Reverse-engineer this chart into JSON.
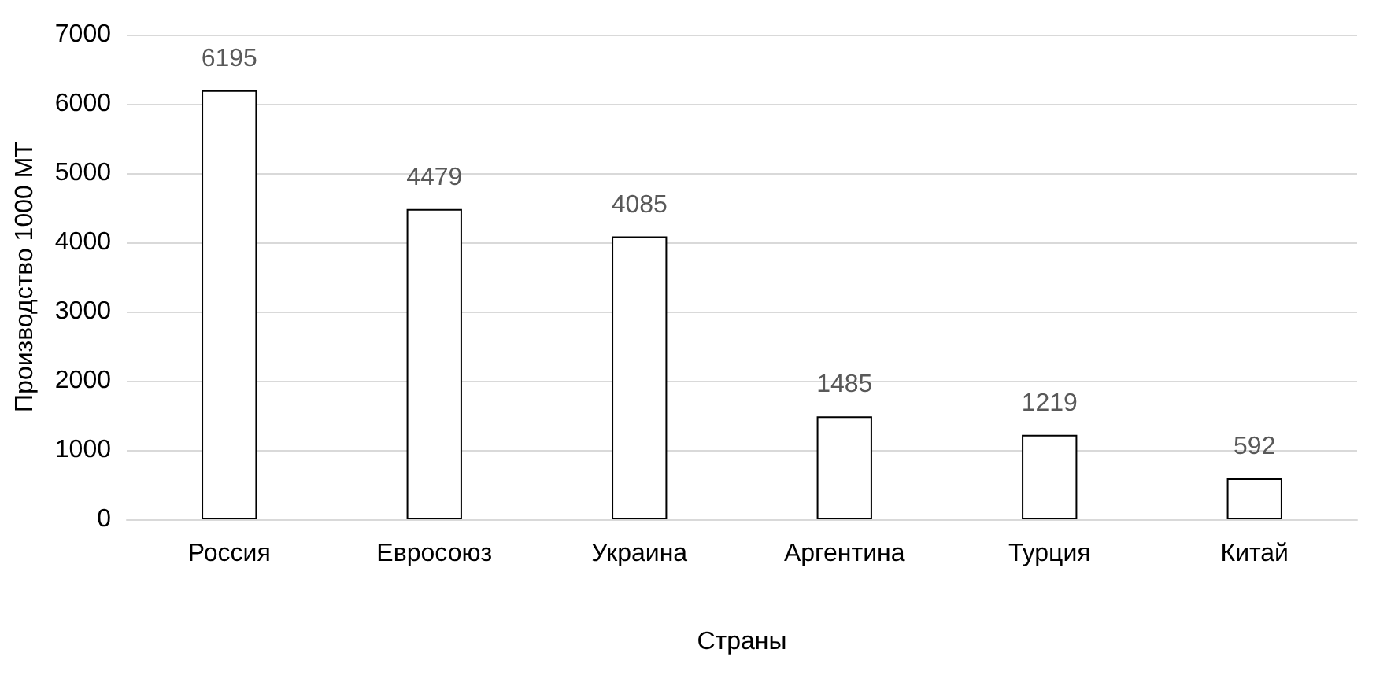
{
  "chart_data": {
    "type": "bar",
    "xlabel": "Страны",
    "ylabel": "Производство 1000 МТ",
    "categories": [
      "Россия",
      "Евросоюз",
      "Украина",
      "Аргентина",
      "Турция",
      "Китай"
    ],
    "values": [
      6195,
      4479,
      4085,
      1485,
      1219,
      592
    ],
    "color": "#ffffff",
    "ylim": [
      0,
      7000
    ],
    "yticks": [
      0,
      1000,
      2000,
      3000,
      4000,
      5000,
      6000,
      7000
    ],
    "grid": "y",
    "data_labels": true
  }
}
